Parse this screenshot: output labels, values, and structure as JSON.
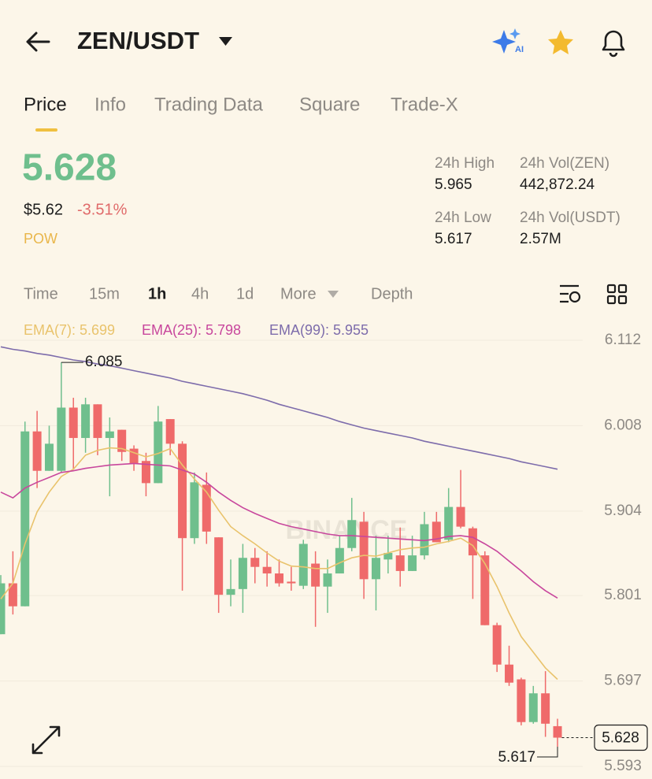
{
  "header": {
    "pair": "ZEN/USDT"
  },
  "tabs": {
    "items": [
      "Price",
      "Info",
      "Trading Data",
      "Square",
      "Trade-X"
    ],
    "active": 0
  },
  "price": {
    "last": "5.628",
    "usd": "$5.62",
    "change": "-3.51%",
    "tag": "POW"
  },
  "stats": [
    {
      "label": "24h High",
      "value": "5.965"
    },
    {
      "label": "24h Vol(ZEN)",
      "value": "442,872.24"
    },
    {
      "label": "24h Low",
      "value": "5.617"
    },
    {
      "label": "24h Vol(USDT)",
      "value": "2.57M"
    }
  ],
  "intervals": {
    "items": [
      "Time",
      "15m",
      "1h",
      "4h",
      "1d",
      "More",
      "Depth"
    ],
    "active": 2
  },
  "chart_data": {
    "type": "candlestick",
    "watermark": "BINANCE",
    "up_color": "#6fbf8d",
    "down_color": "#ef6a6a",
    "open": [
      5.754,
      5.816,
      5.788,
      6.001,
      5.953,
      5.953,
      6.03,
      5.993,
      6.034,
      5.993,
      6.003,
      5.98,
      5.965,
      5.938,
      6.016,
      5.986,
      5.871,
      5.936,
      5.872,
      5.802,
      5.809,
      5.847,
      5.836,
      5.828,
      5.818,
      5.813,
      5.84,
      5.812,
      5.828,
      5.859,
      5.891,
      5.821,
      5.845,
      5.85,
      5.831,
      5.85,
      5.891,
      5.869,
      5.909,
      5.883,
      5.85,
      5.765,
      5.717,
      5.699,
      5.647,
      5.682,
      5.642
    ],
    "high": [
      5.826,
      5.855,
      6.013,
      6.026,
      6.008,
      6.085,
      6.042,
      6.042,
      6.034,
      6.018,
      6.003,
      5.984,
      5.975,
      6.032,
      6.016,
      5.989,
      5.951,
      5.951,
      5.872,
      5.845,
      5.864,
      5.859,
      5.855,
      5.845,
      5.836,
      5.869,
      5.855,
      5.845,
      5.874,
      5.92,
      5.903,
      5.874,
      5.874,
      5.884,
      5.874,
      5.903,
      5.903,
      5.932,
      5.954,
      5.885,
      5.855,
      5.768,
      5.74,
      5.701,
      5.691,
      5.709,
      5.651
    ],
    "low": [
      5.754,
      5.778,
      5.788,
      5.932,
      5.953,
      5.951,
      5.955,
      5.975,
      5.972,
      5.922,
      5.965,
      5.953,
      5.922,
      5.938,
      5.972,
      5.807,
      5.864,
      5.864,
      5.78,
      5.788,
      5.78,
      5.816,
      5.812,
      5.812,
      5.807,
      5.809,
      5.763,
      5.78,
      5.828,
      5.855,
      5.797,
      5.783,
      5.828,
      5.812,
      5.831,
      5.845,
      5.866,
      5.866,
      5.883,
      5.797,
      5.765,
      5.708,
      5.691,
      5.643,
      5.645,
      5.629,
      5.617
    ],
    "close": [
      5.816,
      5.788,
      6.001,
      5.953,
      5.986,
      6.03,
      5.993,
      6.034,
      5.993,
      6.001,
      5.976,
      5.962,
      5.938,
      6.013,
      5.986,
      5.871,
      5.939,
      5.879,
      5.802,
      5.809,
      5.847,
      5.836,
      5.828,
      5.816,
      5.816,
      5.864,
      5.812,
      5.828,
      5.859,
      5.893,
      5.821,
      5.847,
      5.853,
      5.831,
      5.85,
      5.888,
      5.866,
      5.909,
      5.885,
      5.85,
      5.765,
      5.717,
      5.695,
      5.647,
      5.682,
      5.645,
      5.628
    ],
    "series": [
      {
        "name": "EMA(7): 5.699",
        "color": "#e9c36c",
        "values": [
          5.797,
          5.816,
          5.864,
          5.903,
          5.927,
          5.946,
          5.955,
          5.972,
          5.978,
          5.981,
          5.98,
          5.975,
          5.97,
          5.974,
          5.98,
          5.96,
          5.943,
          5.927,
          5.905,
          5.885,
          5.874,
          5.864,
          5.853,
          5.843,
          5.837,
          5.836,
          5.834,
          5.834,
          5.841,
          5.847,
          5.85,
          5.849,
          5.853,
          5.857,
          5.859,
          5.86,
          5.864,
          5.867,
          5.871,
          5.862,
          5.84,
          5.812,
          5.78,
          5.751,
          5.732,
          5.713,
          5.699
        ]
      },
      {
        "name": "EMA(25): 5.798",
        "color": "#c8479d",
        "values": [
          5.927,
          5.92,
          5.932,
          5.939,
          5.945,
          5.951,
          5.953,
          5.956,
          5.958,
          5.96,
          5.961,
          5.962,
          5.961,
          5.96,
          5.959,
          5.954,
          5.949,
          5.939,
          5.927,
          5.917,
          5.908,
          5.901,
          5.895,
          5.889,
          5.885,
          5.882,
          5.879,
          5.876,
          5.874,
          5.874,
          5.873,
          5.872,
          5.871,
          5.87,
          5.869,
          5.868,
          5.87,
          5.873,
          5.874,
          5.872,
          5.864,
          5.855,
          5.843,
          5.831,
          5.818,
          5.807,
          5.798
        ]
      },
      {
        "name": "EMA(99): 5.955",
        "color": "#7d6cab",
        "values": [
          6.104,
          6.101,
          6.099,
          6.096,
          6.094,
          6.091,
          6.088,
          6.086,
          6.083,
          6.081,
          6.078,
          6.075,
          6.072,
          6.069,
          6.066,
          6.062,
          6.059,
          6.056,
          6.053,
          6.05,
          6.047,
          6.043,
          6.039,
          6.034,
          6.03,
          6.026,
          6.022,
          6.018,
          6.013,
          6.009,
          6.005,
          6.002,
          5.999,
          5.996,
          5.993,
          5.989,
          5.986,
          5.983,
          5.98,
          5.977,
          5.974,
          5.971,
          5.968,
          5.964,
          5.961,
          5.958,
          5.955
        ]
      }
    ],
    "ylim": [
      5.593,
      6.112
    ],
    "yticks": [
      6.112,
      6.008,
      5.904,
      5.801,
      5.697,
      5.593
    ],
    "grid": true,
    "high_marker": 6.085,
    "low_marker": 5.617,
    "last_price": 5.628
  }
}
